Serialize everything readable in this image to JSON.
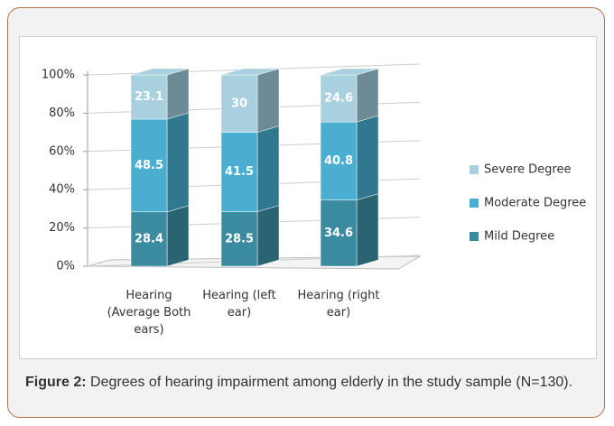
{
  "chart_data": {
    "type": "stacked_bar_3d",
    "categories": [
      "Hearing (Average Both ears)",
      "Hearing (left ear)",
      "Hearing (right ear)"
    ],
    "series": [
      {
        "name": "Mild Degree",
        "color": "#3a8aa0",
        "side": "#2a6372",
        "values": [
          28.4,
          28.5,
          34.6
        ]
      },
      {
        "name": "Moderate Degree",
        "color": "#4aaed0",
        "side": "#2f7890",
        "values": [
          48.5,
          41.5,
          40.8
        ]
      },
      {
        "name": "Severe Degree",
        "color": "#a8d0de",
        "side": "#6c8b96",
        "values": [
          23.1,
          30,
          24.6
        ]
      }
    ],
    "ylim": [
      0,
      100
    ],
    "yticks": [
      {
        "value": 0,
        "label": "0%"
      },
      {
        "value": 20,
        "label": "20%"
      },
      {
        "value": 40,
        "label": "40%"
      },
      {
        "value": 60,
        "label": "60%"
      },
      {
        "value": 80,
        "label": "80%"
      },
      {
        "value": 100,
        "label": "100%"
      }
    ],
    "grid": true,
    "legend": "right"
  },
  "caption": {
    "label": "Figure 2:",
    "text": " Degrees of hearing impairment among elderly in the study sample (N=130)."
  }
}
